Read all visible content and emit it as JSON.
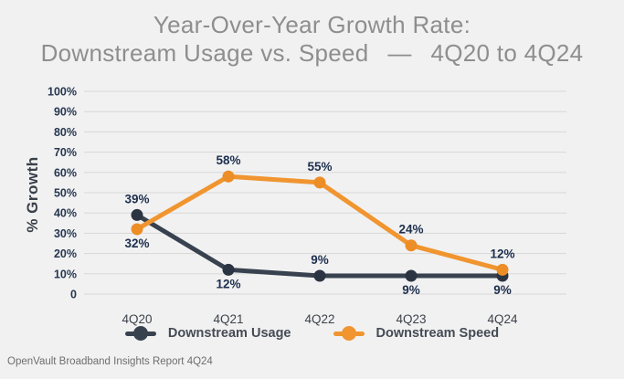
{
  "title": {
    "line1": "Year-Over-Year Growth Rate:",
    "line2": "Downstream Usage vs. Speed  —  4Q20 to 4Q24"
  },
  "footer": "OpenVault Broadband Insights Report 4Q24",
  "colors": {
    "background": "#f1f1f1",
    "gridline": "#d7d7d7",
    "title_text": "#8e8e8e",
    "axis_tick_text": "#263751",
    "data_label_text": "#1d2f4e"
  },
  "chart_data": {
    "type": "line",
    "title": "Year-Over-Year Growth Rate: Downstream Usage vs. Speed — 4Q20 to 4Q24",
    "categories": [
      "4Q20",
      "4Q21",
      "4Q22",
      "4Q23",
      "4Q24"
    ],
    "series": [
      {
        "name": "Downstream Usage",
        "color": "#38424f",
        "marker_color": "#2b3442",
        "values": [
          39,
          12,
          9,
          9,
          9
        ],
        "label_positions": [
          "above",
          "below",
          "above",
          "below",
          "below"
        ]
      },
      {
        "name": "Downstream Speed",
        "color": "#f0952f",
        "marker_color": "#ec8d25",
        "values": [
          32,
          58,
          55,
          24,
          12
        ],
        "label_positions": [
          "below",
          "above",
          "above",
          "above",
          "above"
        ]
      }
    ],
    "ylabel": "% Growth",
    "xlabel": "",
    "ylim": [
      0,
      100
    ],
    "ytick_step": 10,
    "ytick_suffix": "%",
    "ytick_zero_label": "0",
    "grid": "horizontal",
    "legend_position": "bottom"
  }
}
